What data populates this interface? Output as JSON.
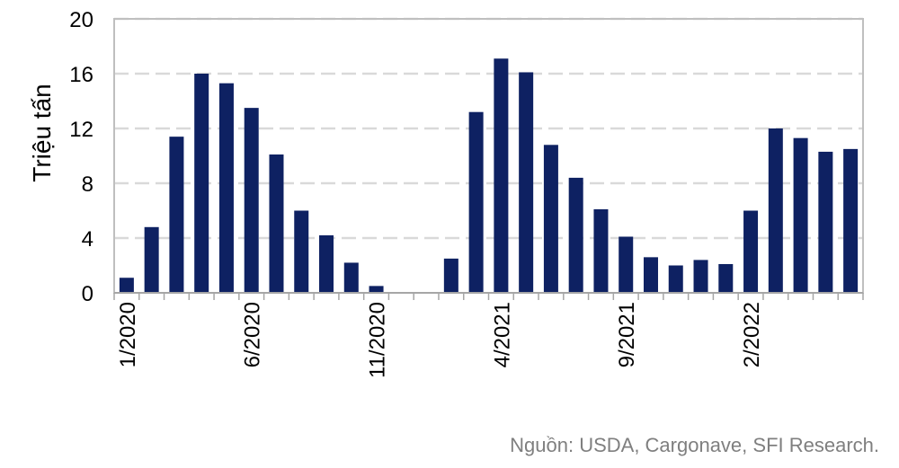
{
  "chart_data": {
    "type": "bar",
    "ylabel": "Triệu tấn",
    "xlabel": "",
    "ylim": [
      0,
      20
    ],
    "yticks": [
      "0",
      "4",
      "8",
      "12",
      "16",
      "20"
    ],
    "grid": true,
    "categories": [
      "1/2020",
      "2/2020",
      "3/2020",
      "4/2020",
      "5/2020",
      "6/2020",
      "7/2020",
      "8/2020",
      "9/2020",
      "10/2020",
      "11/2020",
      "12/2020",
      "1/2021",
      "2/2021",
      "3/2021",
      "4/2021",
      "5/2021",
      "6/2021",
      "7/2021",
      "8/2021",
      "9/2021",
      "10/2021",
      "11/2021",
      "12/2021",
      "1/2022",
      "2/2022",
      "3/2022",
      "4/2022",
      "5/2022",
      "6/2022"
    ],
    "xticks_shown": [
      "1/2020",
      "6/2020",
      "11/2020",
      "4/2021",
      "9/2021",
      "2/2022"
    ],
    "values": [
      1.1,
      4.8,
      11.4,
      16.0,
      15.3,
      13.5,
      10.1,
      6.0,
      4.2,
      2.2,
      0.5,
      0,
      0,
      2.5,
      13.2,
      17.1,
      16.1,
      10.8,
      8.4,
      6.1,
      4.1,
      2.6,
      2.0,
      2.4,
      2.1,
      6.0,
      12.0,
      11.3,
      10.3,
      10.5
    ],
    "bar_color": "#0e2162"
  },
  "source_text": "Nguồn: USDA, Cargonave, SFI Research."
}
